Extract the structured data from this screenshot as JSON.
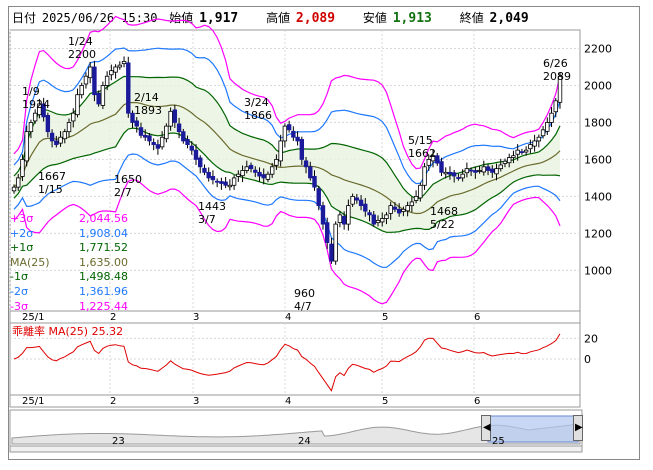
{
  "header": {
    "date_label": "日付",
    "datetime": "2025/06/26 15:30",
    "open_label": "始値",
    "open": "1,917",
    "high_label": "高値",
    "high": "2,089",
    "low_label": "安値",
    "low": "1,913",
    "close_label": "終値",
    "close": "2,049"
  },
  "legend": [
    {
      "name": "+3σ",
      "value": "2,044.56",
      "color": "#ff00ff"
    },
    {
      "name": "+2σ",
      "value": "1,908.04",
      "color": "#1e78ff"
    },
    {
      "name": "+1σ",
      "value": "1,771.52",
      "color": "#006400"
    },
    {
      "name": "MA(25)",
      "value": "1,635.00",
      "color": "#6b6b2e"
    },
    {
      "name": "-1σ",
      "value": "1,498.48",
      "color": "#006400"
    },
    {
      "name": "-2σ",
      "value": "1,361.96",
      "color": "#1e78ff"
    },
    {
      "name": "-3σ",
      "value": "1,225.44",
      "color": "#ff00ff"
    }
  ],
  "indicator": {
    "label": "乖離率 MA(25)",
    "value": "25.32",
    "y_ticks": [
      "20",
      "0"
    ],
    "color": "#e00000"
  },
  "navigator": {
    "labels": [
      "23",
      "24",
      "25"
    ]
  },
  "chart_data": {
    "type": "candlestick",
    "price_axis": {
      "ticks": [
        1000,
        1200,
        1400,
        1600,
        1800,
        2000,
        2200
      ],
      "ylim": [
        780,
        2300
      ]
    },
    "x_tick_labels": [
      "25/1",
      "2",
      "3",
      "4",
      "5",
      "6"
    ],
    "annotations": [
      {
        "date": "1/9",
        "price": 1924
      },
      {
        "date": "1/15",
        "price": 1667
      },
      {
        "date": "1/24",
        "price": 2200
      },
      {
        "date": "2/7",
        "price": 1650
      },
      {
        "date": "2/14",
        "price": 1893
      },
      {
        "date": "3/7",
        "price": 1443
      },
      {
        "date": "3/24",
        "price": 1866
      },
      {
        "date": "4/7",
        "price": 960
      },
      {
        "date": "5/15",
        "price": 1662
      },
      {
        "date": "5/22",
        "price": 1468
      },
      {
        "date": "6/26",
        "price": 2089
      }
    ],
    "close": [
      1450,
      1500,
      1600,
      1750,
      1800,
      1850,
      1900,
      1830,
      1750,
      1700,
      1680,
      1720,
      1750,
      1800,
      1850,
      1950,
      2000,
      2050,
      2100,
      1950,
      1900,
      2000,
      2050,
      2080,
      2100,
      2110,
      2130,
      1850,
      1800,
      1780,
      1730,
      1720,
      1700,
      1680,
      1660,
      1720,
      1780,
      1860,
      1800,
      1750,
      1700,
      1680,
      1650,
      1600,
      1560,
      1530,
      1500,
      1490,
      1480,
      1470,
      1460,
      1460,
      1500,
      1520,
      1540,
      1560,
      1550,
      1530,
      1510,
      1500,
      1520,
      1560,
      1600,
      1700,
      1780,
      1760,
      1720,
      1700,
      1600,
      1560,
      1500,
      1450,
      1350,
      1250,
      1150,
      1050,
      1250,
      1300,
      1250,
      1350,
      1400,
      1380,
      1350,
      1320,
      1300,
      1250,
      1270,
      1280,
      1300,
      1350,
      1330,
      1310,
      1330,
      1350,
      1370,
      1400,
      1460,
      1560,
      1600,
      1620,
      1580,
      1530,
      1530,
      1520,
      1510,
      1500,
      1520,
      1550,
      1540,
      1530,
      1540,
      1560,
      1540,
      1530,
      1550,
      1570,
      1590,
      1610,
      1620,
      1650,
      1640,
      1650,
      1680,
      1700,
      1720,
      1760,
      1800,
      1850,
      1917,
      2049
    ]
  }
}
